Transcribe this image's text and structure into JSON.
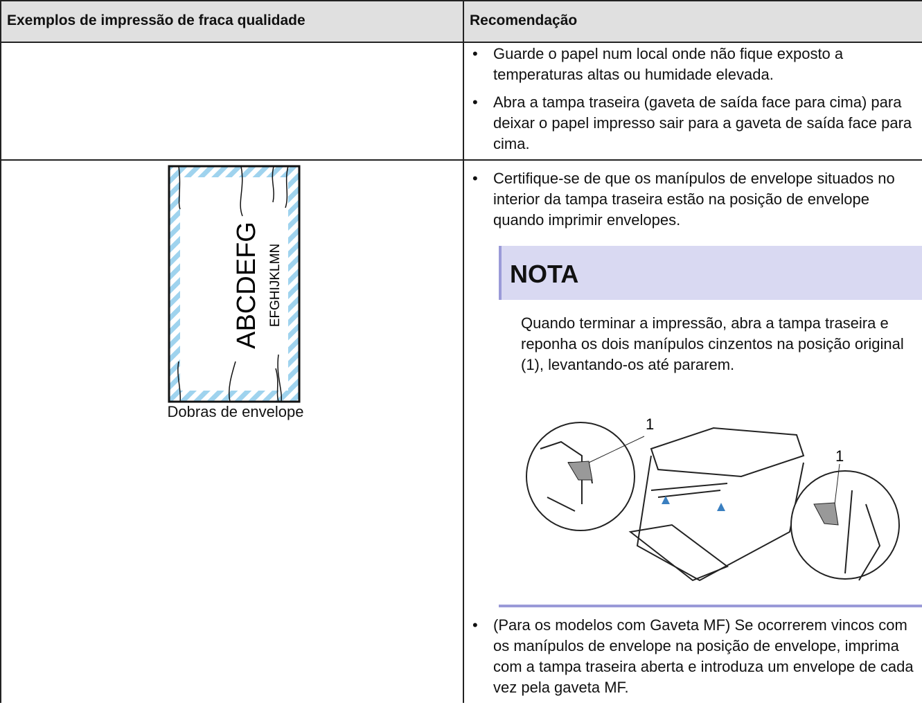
{
  "table": {
    "headers": [
      "Exemplos de impressão de fraca qualidade",
      "Recomendação"
    ],
    "rows": [
      {
        "recommendations": [
          "Guarde o papel num local onde não fique exposto a temperaturas altas ou humidade elevada.",
          "Abra a tampa traseira (gaveta de saída face para cima) para deixar o papel impresso sair para a gaveta de saída face para cima."
        ]
      },
      {
        "example": {
          "large_text": "ABCDEFG",
          "small_text": "EFGHIJKLMN",
          "caption": "Dobras de envelope"
        },
        "recommendations": [
          "Certifique-se de que os manípulos de envelope situados no interior da tampa traseira estão na posição de envelope quando imprimir envelopes."
        ],
        "note": {
          "title": "NOTA",
          "text": "Quando terminar a impressão, abra a tampa traseira e reponha os dois manípulos cinzentos na posição original (1), levantando-os até pararem.",
          "callouts": [
            "1",
            "1"
          ]
        },
        "more_recommendations": [
          "(Para os modelos com Gaveta MF) Se ocorrerem vincos com os manípulos de envelope na posição de envelope, imprima com a tampa traseira aberta e introduza um envelope de cada vez pela gaveta MF."
        ]
      }
    ]
  }
}
